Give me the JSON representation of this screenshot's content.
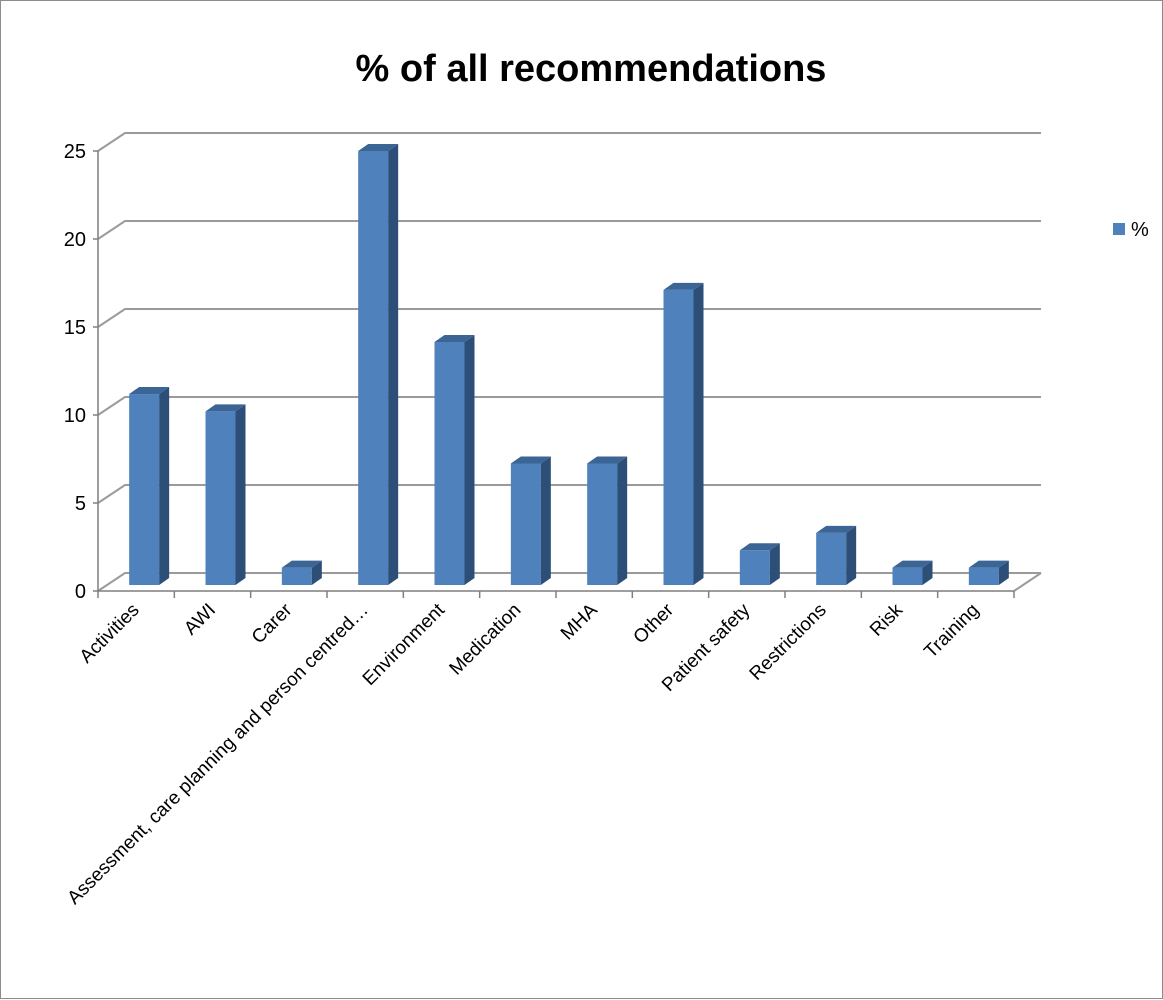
{
  "chart_data": {
    "type": "bar",
    "title": "% of all recommendations",
    "categories": [
      "Activities",
      "AWI",
      "Carer",
      "Assessment, care planning and person centred…",
      "Environment",
      "Medication",
      "MHA",
      "Other",
      "Patient safety",
      "Restrictions",
      "Risk",
      "Training"
    ],
    "series": [
      {
        "name": "%",
        "values": [
          11,
          10,
          1,
          25,
          14,
          7,
          7,
          17,
          2,
          3,
          1,
          1
        ]
      }
    ],
    "ylim": [
      0,
      25
    ],
    "yticks": [
      "0",
      "5",
      "10",
      "15",
      "20",
      "25"
    ],
    "grid": true,
    "legend": "right",
    "colors": {
      "bar_front": "#4f81bd",
      "bar_side": "#2d4f77",
      "bar_top": "#3b6594",
      "grid": "#9a9a9a",
      "axis": "#7f7f7f"
    }
  }
}
